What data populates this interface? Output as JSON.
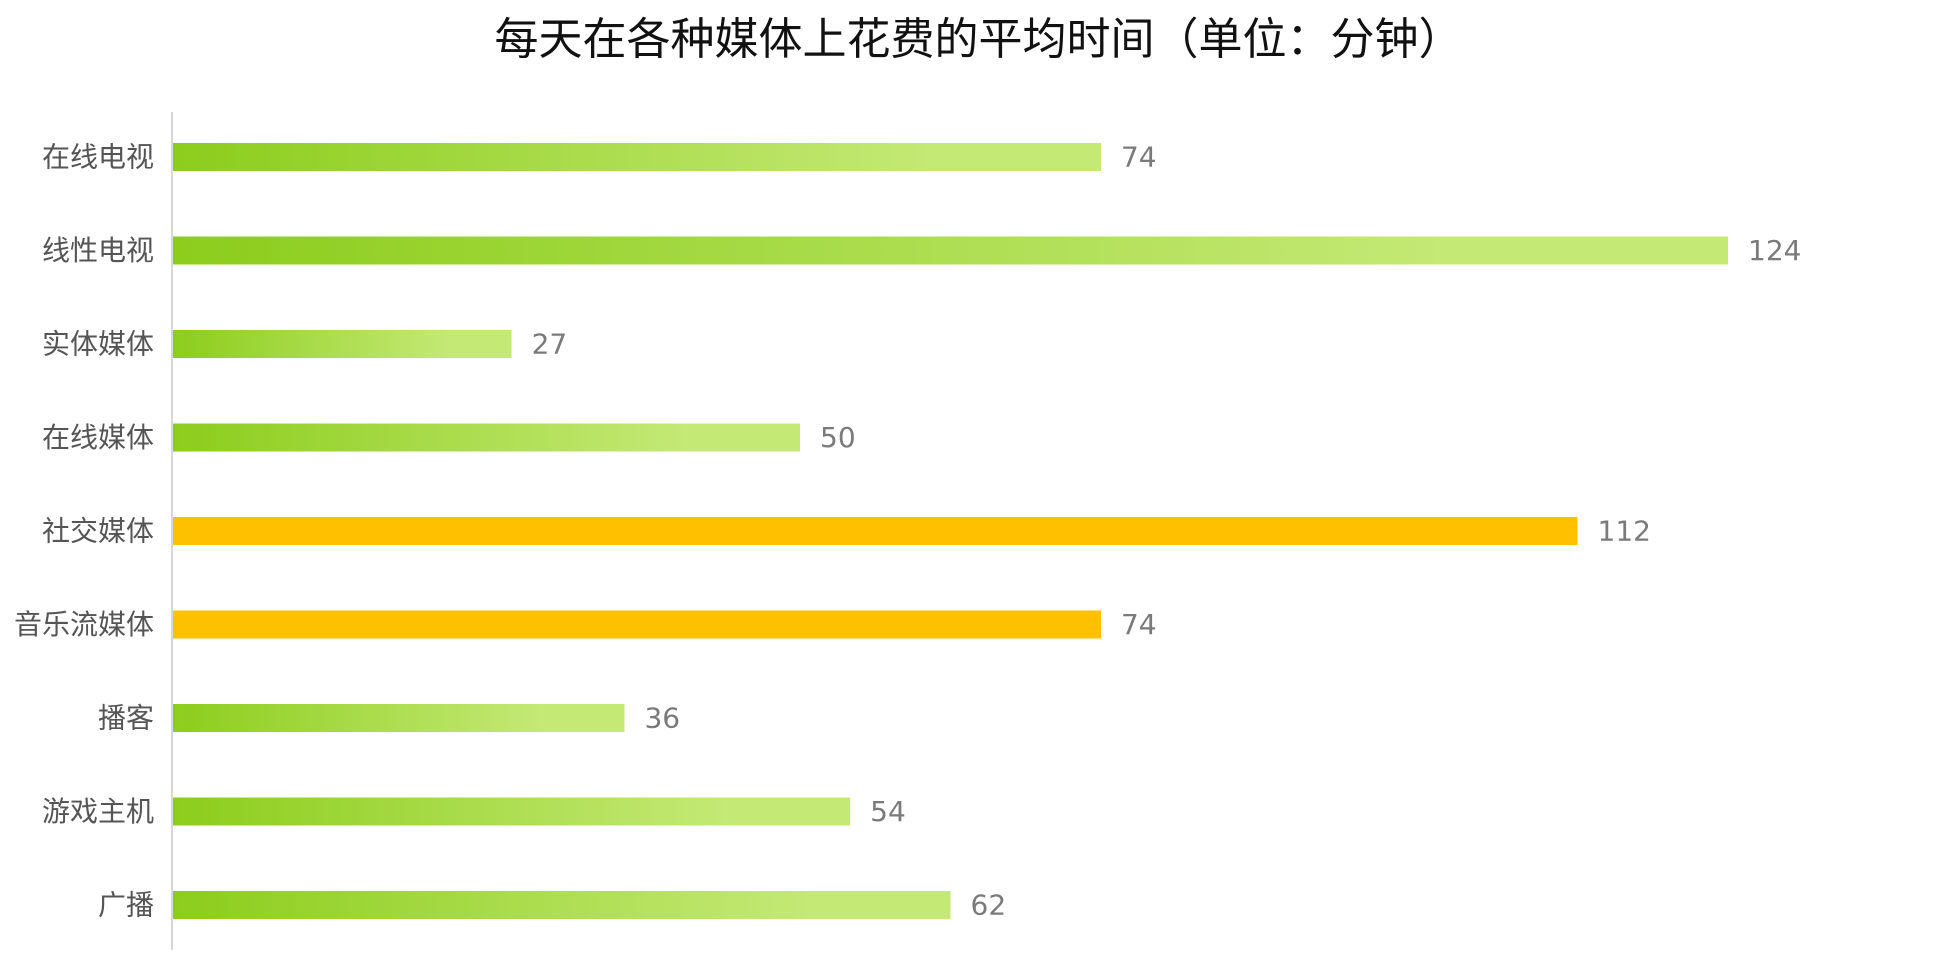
{
  "chart_data": {
    "type": "bar",
    "orientation": "horizontal",
    "title": "每天在各种媒体上花费的平均时间（单位：分钟）",
    "xlabel": "",
    "ylabel": "",
    "grid": false,
    "categories": [
      "在线电视",
      "线性电视",
      "实体媒体",
      "在线媒体",
      "社交媒体",
      "音乐流媒体",
      "播客",
      "游戏主机",
      "广播"
    ],
    "values": [
      74,
      124,
      27,
      50,
      112,
      74,
      36,
      54,
      62
    ],
    "bar_styles": [
      "green-gradient",
      "green-gradient",
      "green-gradient",
      "green-gradient",
      "highlight",
      "highlight",
      "green-gradient",
      "green-gradient",
      "green-gradient"
    ],
    "colors": {
      "gradient_start": "#8ccd1c",
      "gradient_end": "#c4e975",
      "highlight": "#ffc000",
      "axis": "#cccccc"
    }
  }
}
